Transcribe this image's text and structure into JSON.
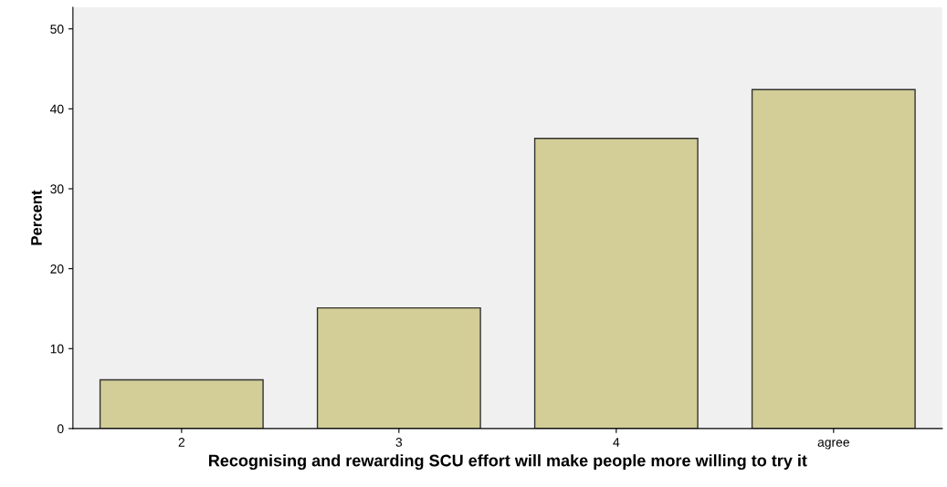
{
  "chart_data": {
    "type": "bar",
    "xlabel": "Recognising and rewarding SCU effort will make people more willing to try it",
    "ylabel": "Percent",
    "categories": [
      "2",
      "3",
      "4",
      "agree"
    ],
    "values": [
      6.1,
      15.1,
      36.3,
      42.4
    ],
    "color": "#d3ce97",
    "ylim": [
      0,
      52.7
    ],
    "yticks": [
      0,
      10,
      20,
      30,
      40,
      50
    ],
    "grid": false
  }
}
